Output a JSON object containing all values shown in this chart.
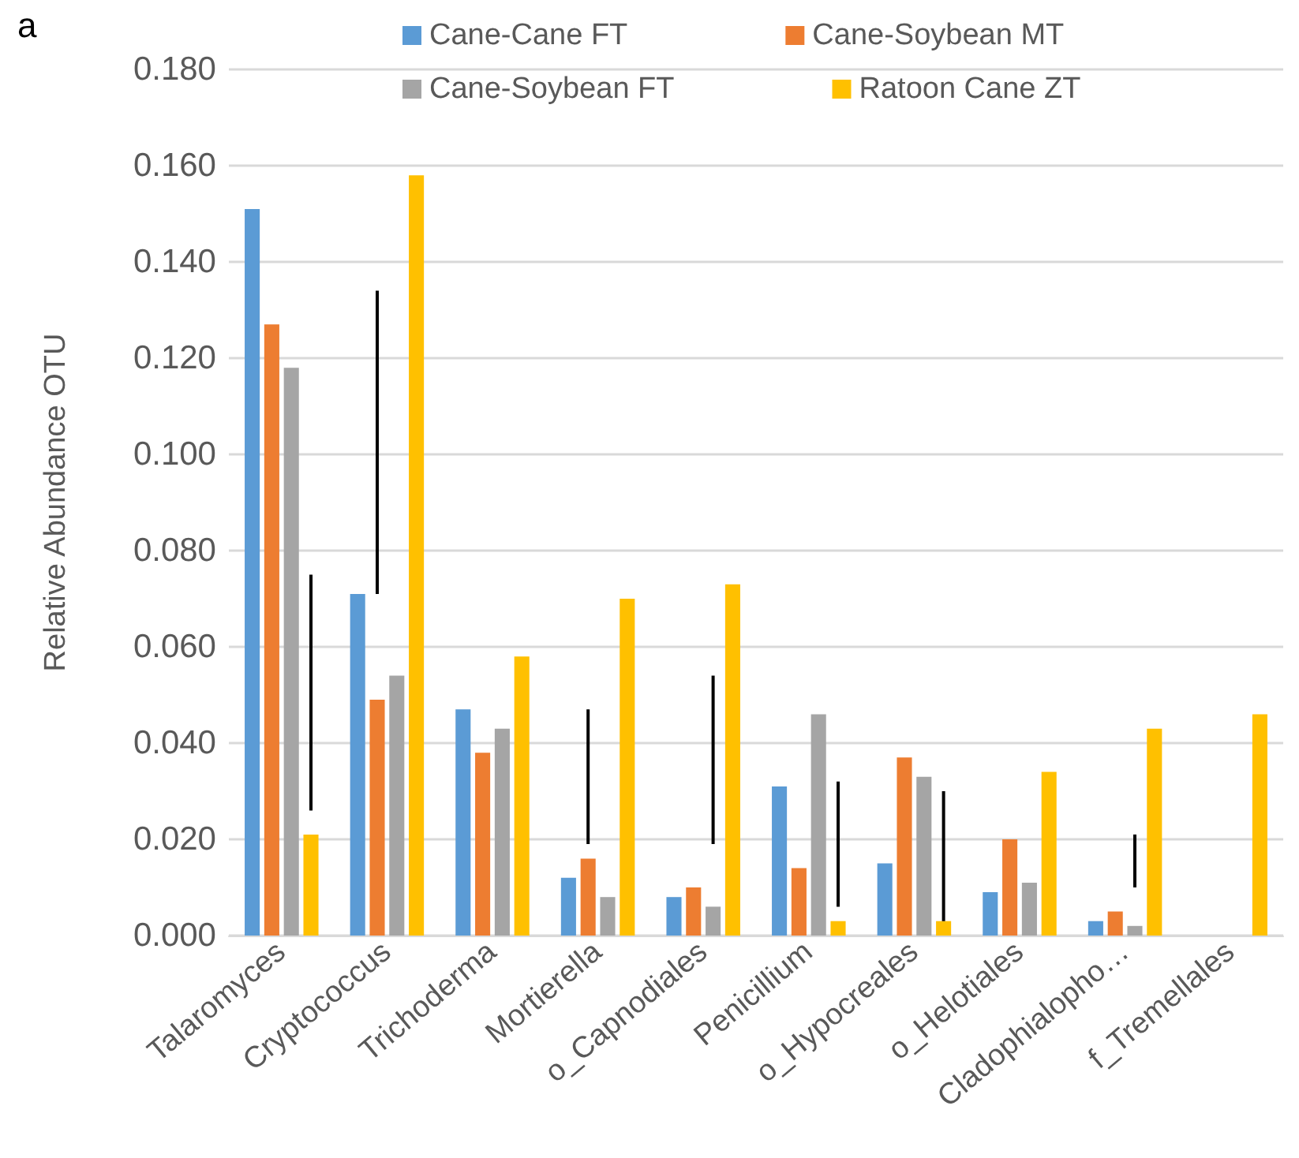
{
  "chart_data": {
    "type": "bar",
    "title": "a",
    "ylabel": "Relative Abundance OTU",
    "categories": [
      "Talaromyces",
      "Cryptococcus",
      "Trichoderma",
      "Mortierella",
      "o_Capnodiales",
      "Penicillium",
      "o_Hypocreales",
      "o_Helotiales",
      "Cladophialopho…",
      "f_Tremellales"
    ],
    "series": [
      {
        "name": "Cane-Cane FT",
        "color": "#5b9bd5",
        "values": [
          0.151,
          0.071,
          0.047,
          0.012,
          0.008,
          0.031,
          0.015,
          0.009,
          0.003,
          0
        ]
      },
      {
        "name": "Cane-Soybean MT",
        "color": "#ed7d31",
        "values": [
          0.127,
          0.049,
          0.038,
          0.016,
          0.01,
          0.014,
          0.037,
          0.02,
          0.005,
          0
        ],
        "errors": [
          null,
          [
            0.071,
            0.134
          ],
          null,
          [
            0.019,
            0.047
          ],
          null,
          null,
          null,
          null,
          null,
          null
        ]
      },
      {
        "name": "Cane-Soybean FT",
        "color": "#a5a5a5",
        "values": [
          0.118,
          0.054,
          0.043,
          0.008,
          0.006,
          0.046,
          0.033,
          0.011,
          0.002,
          0
        ],
        "errors": [
          null,
          null,
          null,
          null,
          [
            0.019,
            0.054
          ],
          null,
          null,
          null,
          [
            0.01,
            0.021
          ],
          null
        ]
      },
      {
        "name": "Ratoon Cane ZT",
        "color": "#ffc000",
        "values": [
          0.021,
          0.158,
          0.058,
          0.07,
          0.073,
          0.003,
          0.003,
          0.034,
          0.043,
          0.046
        ],
        "errors": [
          [
            0.026,
            0.075
          ],
          null,
          null,
          null,
          null,
          [
            0.006,
            0.032
          ],
          [
            0.003,
            0.03
          ],
          null,
          null,
          null
        ]
      }
    ],
    "ylim": [
      0,
      0.18
    ],
    "yticks": [
      {
        "value": 0,
        "label": "0.000"
      },
      {
        "value": 0.02,
        "label": "0.020"
      },
      {
        "value": 0.04,
        "label": "0.040"
      },
      {
        "value": 0.06,
        "label": "0.060"
      },
      {
        "value": 0.08,
        "label": "0.080"
      },
      {
        "value": 0.1,
        "label": "0.100"
      },
      {
        "value": 0.12,
        "label": "0.120"
      },
      {
        "value": 0.14,
        "label": "0.140"
      },
      {
        "value": 0.16,
        "label": "0.160"
      },
      {
        "value": 0.18,
        "label": "0.180"
      }
    ],
    "grid": "y",
    "legend": "top"
  }
}
